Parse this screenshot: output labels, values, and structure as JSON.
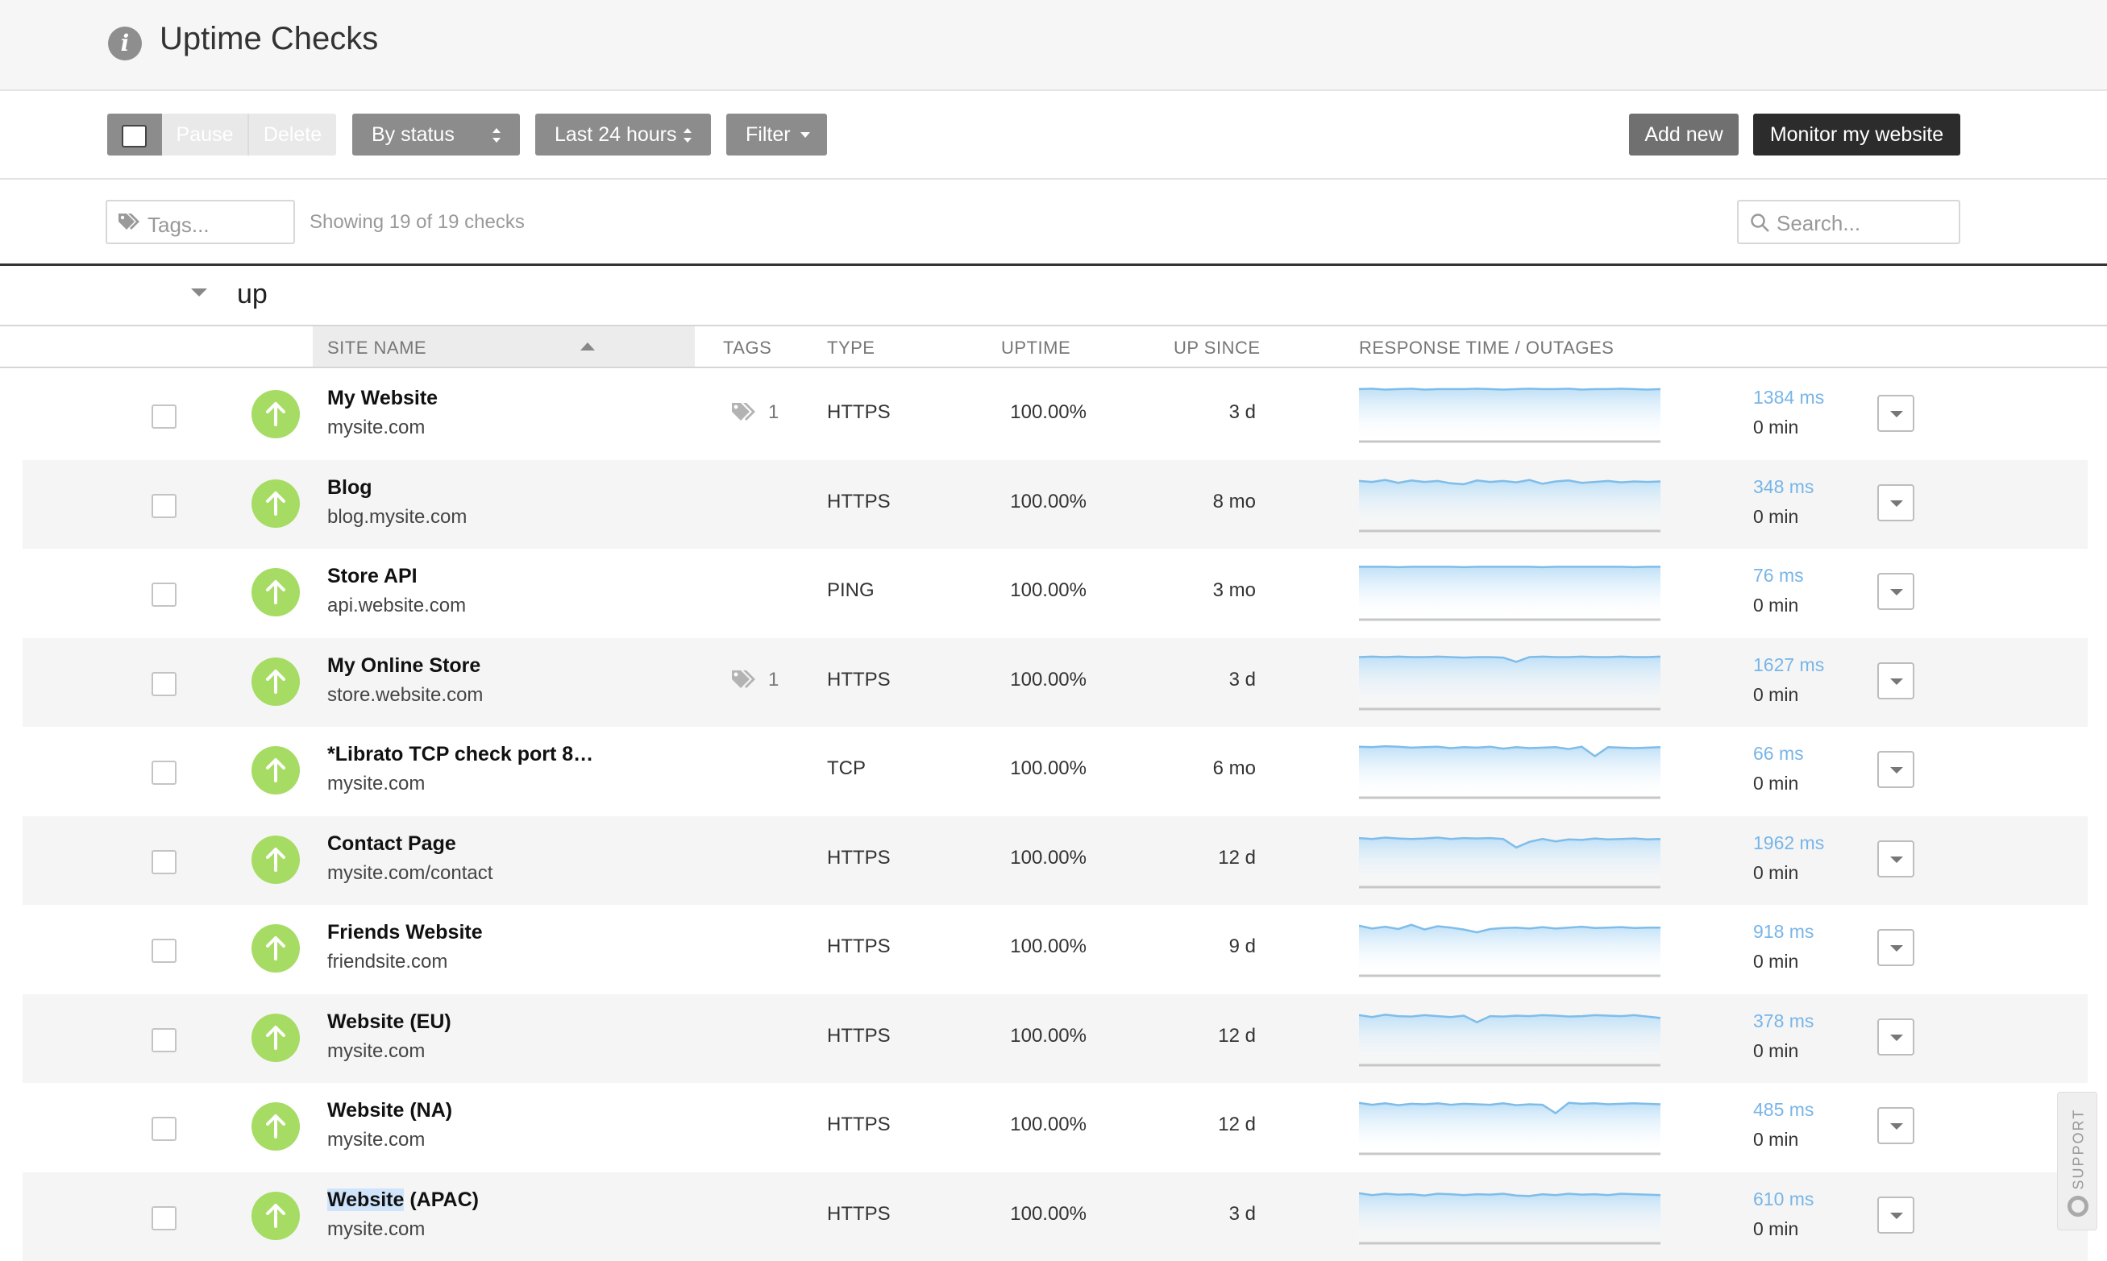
{
  "header": {
    "title": "Uptime Checks"
  },
  "toolbar": {
    "pause_label": "Pause",
    "delete_label": "Delete",
    "sort_label": "By status",
    "range_label": "Last 24 hours",
    "filter_label": "Filter",
    "add_label": "Add new",
    "monitor_label": "Monitor my website"
  },
  "filters": {
    "tags_placeholder": "Tags...",
    "showing": "Showing 19 of 19 checks",
    "search_placeholder": "Search..."
  },
  "group": {
    "label": "up"
  },
  "columns": {
    "site_name": "SITE NAME",
    "tags": "TAGS",
    "type": "TYPE",
    "uptime": "UPTIME",
    "up_since": "UP SINCE",
    "response": "RESPONSE TIME / OUTAGES"
  },
  "checks": [
    {
      "name": "My Website",
      "url": "mysite.com",
      "tags": "1",
      "type": "HTTPS",
      "uptime": "100.00%",
      "since": "3 d",
      "response": "1384 ms",
      "outage": "0 min"
    },
    {
      "name": "Blog",
      "url": "blog.mysite.com",
      "tags": "",
      "type": "HTTPS",
      "uptime": "100.00%",
      "since": "8 mo",
      "response": "348 ms",
      "outage": "0 min"
    },
    {
      "name": "Store API",
      "url": "api.website.com",
      "tags": "",
      "type": "PING",
      "uptime": "100.00%",
      "since": "3 mo",
      "response": "76 ms",
      "outage": "0 min"
    },
    {
      "name": "My Online Store",
      "url": "store.website.com",
      "tags": "1",
      "type": "HTTPS",
      "uptime": "100.00%",
      "since": "3 d",
      "response": "1627 ms",
      "outage": "0 min"
    },
    {
      "name": "*Librato TCP check port 8…",
      "url": "mysite.com",
      "tags": "",
      "type": "TCP",
      "uptime": "100.00%",
      "since": "6 mo",
      "response": "66 ms",
      "outage": "0 min"
    },
    {
      "name": "Contact Page",
      "url": "mysite.com/contact",
      "tags": "",
      "type": "HTTPS",
      "uptime": "100.00%",
      "since": "12 d",
      "response": "1962 ms",
      "outage": "0 min"
    },
    {
      "name": "Friends Website",
      "url": "friendsite.com",
      "tags": "",
      "type": "HTTPS",
      "uptime": "100.00%",
      "since": "9 d",
      "response": "918 ms",
      "outage": "0 min"
    },
    {
      "name": "Website (EU)",
      "url": "mysite.com",
      "tags": "",
      "type": "HTTPS",
      "uptime": "100.00%",
      "since": "12 d",
      "response": "378 ms",
      "outage": "0 min"
    },
    {
      "name": "Website (NA)",
      "url": "mysite.com",
      "tags": "",
      "type": "HTTPS",
      "uptime": "100.00%",
      "since": "12 d",
      "response": "485 ms",
      "outage": "0 min"
    },
    {
      "name": "Website (APAC)",
      "url": "mysite.com",
      "tags": "",
      "type": "HTTPS",
      "uptime": "100.00%",
      "since": "3 d",
      "response": "610 ms",
      "outage": "0 min"
    }
  ],
  "sparklines": [
    [
      5,
      4,
      6,
      5,
      4,
      6,
      5,
      5,
      5,
      4,
      5,
      6,
      5,
      4,
      5,
      5,
      4,
      6,
      5,
      5,
      4,
      5,
      6,
      5
    ],
    [
      10,
      12,
      8,
      14,
      9,
      12,
      10,
      15,
      17,
      9,
      12,
      10,
      13,
      8,
      16,
      11,
      9,
      14,
      12,
      10,
      13,
      11,
      12,
      11
    ],
    [
      4,
      4,
      4,
      5,
      4,
      4,
      4,
      4,
      5,
      4,
      4,
      4,
      4,
      4,
      5,
      4,
      4,
      4,
      4,
      4,
      4,
      5,
      4,
      4
    ],
    [
      6,
      5,
      6,
      5,
      6,
      6,
      5,
      6,
      7,
      6,
      6,
      7,
      16,
      6,
      5,
      6,
      6,
      5,
      6,
      6,
      5,
      6,
      6,
      5
    ],
    [
      8,
      9,
      7,
      8,
      10,
      9,
      8,
      11,
      9,
      10,
      8,
      12,
      9,
      11,
      10,
      9,
      13,
      8,
      28,
      9,
      10,
      11,
      10,
      9
    ],
    [
      12,
      14,
      11,
      13,
      14,
      13,
      11,
      14,
      12,
      13,
      12,
      14,
      32,
      20,
      14,
      19,
      15,
      16,
      13,
      15,
      14,
      13,
      15,
      14
    ],
    [
      10,
      16,
      12,
      17,
      8,
      18,
      11,
      14,
      18,
      24,
      17,
      15,
      14,
      16,
      13,
      16,
      14,
      12,
      15,
      14,
      13,
      15,
      14,
      14
    ],
    [
      10,
      14,
      9,
      12,
      13,
      10,
      12,
      14,
      11,
      25,
      12,
      13,
      11,
      12,
      10,
      11,
      13,
      12,
      10,
      11,
      12,
      10,
      13,
      16
    ],
    [
      8,
      12,
      9,
      13,
      10,
      11,
      9,
      12,
      10,
      11,
      12,
      9,
      13,
      11,
      12,
      30,
      8,
      10,
      9,
      11,
      10,
      9,
      10,
      11
    ],
    [
      10,
      14,
      11,
      13,
      12,
      15,
      11,
      12,
      14,
      12,
      13,
      11,
      15,
      16,
      12,
      14,
      11,
      13,
      12,
      14,
      11,
      12,
      13,
      14
    ]
  ],
  "support": {
    "label": "SUPPORT"
  }
}
